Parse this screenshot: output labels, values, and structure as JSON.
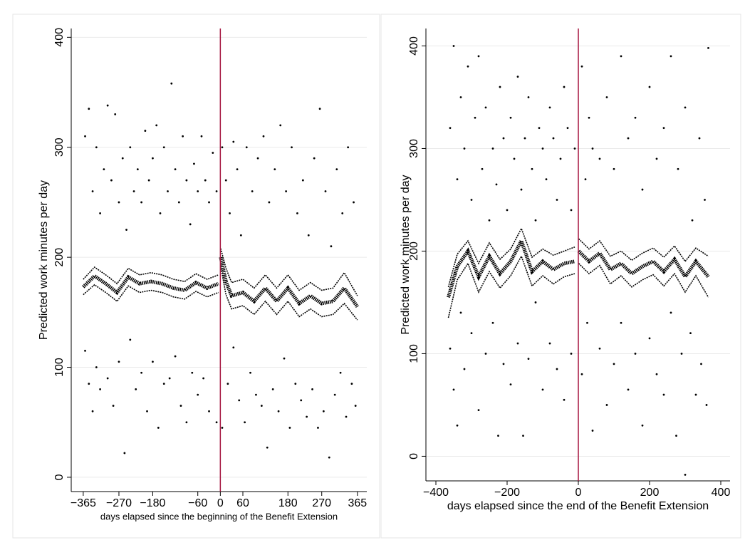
{
  "chart_data": [
    {
      "type": "scatter",
      "y_label": "Predicted work minutes per day",
      "x_label": "days elapsed since the beginning of the Benefit Extension",
      "xlim": [
        -397,
        390
      ],
      "ylim": [
        -13,
        408
      ],
      "xticks": [
        {
          "value": -365,
          "label": "−365"
        },
        {
          "value": -270,
          "label": "−270"
        },
        {
          "value": -180,
          "label": "−180"
        },
        {
          "value": -60,
          "label": "−60"
        },
        0,
        60,
        180,
        270,
        365
      ],
      "yticks": [
        0,
        100,
        200,
        300,
        400
      ],
      "grid": true,
      "point_color": "#000000",
      "line_color": "#a5143f",
      "xline": 0,
      "scatter": {
        "x": [
          -360,
          -350,
          -340,
          -330,
          -320,
          -310,
          -300,
          -290,
          -280,
          -270,
          -260,
          -250,
          -240,
          -230,
          -220,
          -210,
          -200,
          -190,
          -180,
          -170,
          -160,
          -150,
          -140,
          -130,
          -120,
          -110,
          -100,
          -90,
          -80,
          -70,
          -60,
          -50,
          -40,
          -30,
          -20,
          -10,
          5,
          15,
          25,
          35,
          45,
          55,
          70,
          85,
          100,
          115,
          130,
          145,
          160,
          175,
          190,
          205,
          220,
          235,
          250,
          265,
          280,
          295,
          310,
          325,
          340,
          355,
          -360,
          -350,
          -340,
          -330,
          -320,
          -300,
          -285,
          -270,
          -255,
          -240,
          -225,
          -210,
          -195,
          -180,
          -165,
          -150,
          -135,
          -120,
          -105,
          -90,
          -75,
          -60,
          -45,
          -30,
          -10,
          5,
          20,
          35,
          50,
          65,
          80,
          95,
          110,
          125,
          140,
          155,
          170,
          185,
          200,
          215,
          230,
          245,
          260,
          275,
          290,
          305,
          320,
          335,
          350,
          360
        ],
        "y": [
          310,
          335,
          260,
          300,
          240,
          280,
          338,
          270,
          330,
          250,
          290,
          225,
          300,
          260,
          280,
          250,
          315,
          270,
          290,
          320,
          240,
          300,
          260,
          358,
          280,
          250,
          310,
          270,
          230,
          285,
          260,
          310,
          270,
          250,
          295,
          260,
          300,
          270,
          240,
          305,
          280,
          220,
          300,
          260,
          290,
          310,
          250,
          280,
          320,
          260,
          300,
          240,
          270,
          220,
          290,
          335,
          260,
          210,
          280,
          240,
          300,
          250,
          115,
          85,
          60,
          100,
          80,
          90,
          65,
          105,
          22,
          125,
          80,
          95,
          60,
          105,
          45,
          85,
          90,
          110,
          65,
          50,
          95,
          75,
          90,
          60,
          50,
          45,
          85,
          118,
          70,
          50,
          95,
          75,
          65,
          27,
          80,
          60,
          108,
          45,
          85,
          70,
          55,
          80,
          45,
          60,
          18,
          75,
          95,
          55,
          85,
          65
        ]
      },
      "fit": {
        "x": [
          -365,
          -335,
          -305,
          -275,
          -245,
          -215,
          -185,
          -155,
          -125,
          -95,
          -65,
          -35,
          -5,
          0,
          1,
          15,
          30,
          60,
          90,
          120,
          150,
          180,
          210,
          240,
          270,
          300,
          330,
          365
        ],
        "values": [
          173,
          183,
          176,
          168,
          182,
          176,
          178,
          176,
          172,
          170,
          177,
          172,
          176,
          null,
          200,
          178,
          165,
          168,
          160,
          172,
          160,
          172,
          158,
          165,
          158,
          160,
          172,
          155
        ],
        "upper": [
          180,
          191,
          184,
          176,
          190,
          184,
          186,
          184,
          180,
          178,
          185,
          180,
          184,
          null,
          208,
          190,
          177,
          180,
          172,
          184,
          172,
          184,
          170,
          177,
          170,
          172,
          186,
          165
        ],
        "lower": [
          166,
          175,
          168,
          160,
          174,
          168,
          170,
          168,
          164,
          162,
          169,
          164,
          168,
          null,
          192,
          166,
          153,
          156,
          148,
          160,
          148,
          160,
          146,
          153,
          146,
          148,
          158,
          143
        ]
      }
    },
    {
      "type": "scatter",
      "y_label": "Predicted work minutes per day",
      "x_label": "days elapsed since the end of the Benefit Extension",
      "xlim": [
        -428,
        426
      ],
      "ylim": [
        -24,
        417
      ],
      "xticks": [
        {
          "value": -400,
          "label": "−400"
        },
        {
          "value": -200,
          "label": "−200"
        },
        0,
        200,
        400
      ],
      "yticks": [
        0,
        100,
        200,
        300,
        400
      ],
      "grid": true,
      "point_color": "#000000",
      "line_color": "#a5143f",
      "xline": 0,
      "scatter": {
        "x": [
          -360,
          -350,
          -340,
          -330,
          -320,
          -310,
          -300,
          -290,
          -280,
          -270,
          -260,
          -250,
          -240,
          -230,
          -220,
          -210,
          -200,
          -190,
          -180,
          -170,
          -160,
          -150,
          -140,
          -130,
          -120,
          -110,
          -100,
          -90,
          -80,
          -70,
          -60,
          -50,
          -40,
          -30,
          -20,
          -10,
          10,
          20,
          30,
          40,
          60,
          80,
          100,
          120,
          140,
          160,
          180,
          200,
          220,
          240,
          260,
          280,
          300,
          320,
          340,
          355,
          365,
          -360,
          -350,
          -340,
          -330,
          -320,
          -300,
          -280,
          -260,
          -240,
          -225,
          -210,
          -190,
          -170,
          -155,
          -140,
          -120,
          -100,
          -80,
          -60,
          -40,
          -20,
          10,
          25,
          40,
          60,
          80,
          100,
          120,
          140,
          160,
          180,
          200,
          220,
          240,
          260,
          275,
          290,
          300,
          315,
          330,
          345,
          360
        ],
        "y": [
          320,
          400,
          270,
          350,
          300,
          380,
          250,
          330,
          390,
          280,
          340,
          230,
          300,
          265,
          360,
          310,
          240,
          330,
          290,
          370,
          260,
          310,
          350,
          280,
          230,
          320,
          300,
          270,
          340,
          310,
          250,
          290,
          360,
          320,
          240,
          300,
          380,
          270,
          330,
          300,
          290,
          350,
          280,
          390,
          310,
          330,
          260,
          360,
          290,
          320,
          390,
          280,
          340,
          230,
          310,
          250,
          398,
          105,
          65,
          30,
          140,
          85,
          120,
          45,
          100,
          130,
          20,
          90,
          70,
          110,
          20,
          95,
          150,
          65,
          110,
          85,
          55,
          100,
          80,
          130,
          25,
          105,
          50,
          90,
          130,
          65,
          100,
          30,
          115,
          80,
          60,
          140,
          20,
          100,
          -18,
          120,
          60,
          90,
          50
        ]
      },
      "fit": {
        "x": [
          -365,
          -340,
          -310,
          -280,
          -250,
          -220,
          -190,
          -160,
          -130,
          -100,
          -70,
          -40,
          -10,
          0,
          1,
          30,
          60,
          90,
          120,
          150,
          180,
          210,
          240,
          270,
          300,
          330,
          365
        ],
        "values": [
          155,
          185,
          200,
          175,
          195,
          178,
          190,
          210,
          180,
          190,
          182,
          188,
          190,
          null,
          200,
          190,
          198,
          182,
          188,
          178,
          185,
          190,
          180,
          192,
          175,
          190,
          175
        ],
        "upper": [
          165,
          197,
          210,
          188,
          208,
          192,
          202,
          222,
          194,
          202,
          196,
          200,
          204,
          null,
          212,
          202,
          210,
          195,
          200,
          191,
          198,
          203,
          194,
          205,
          190,
          203,
          195
        ],
        "lower": [
          135,
          172,
          188,
          160,
          180,
          164,
          176,
          195,
          166,
          176,
          168,
          175,
          178,
          null,
          188,
          178,
          186,
          168,
          176,
          165,
          172,
          177,
          166,
          178,
          160,
          176,
          155
        ]
      }
    }
  ]
}
